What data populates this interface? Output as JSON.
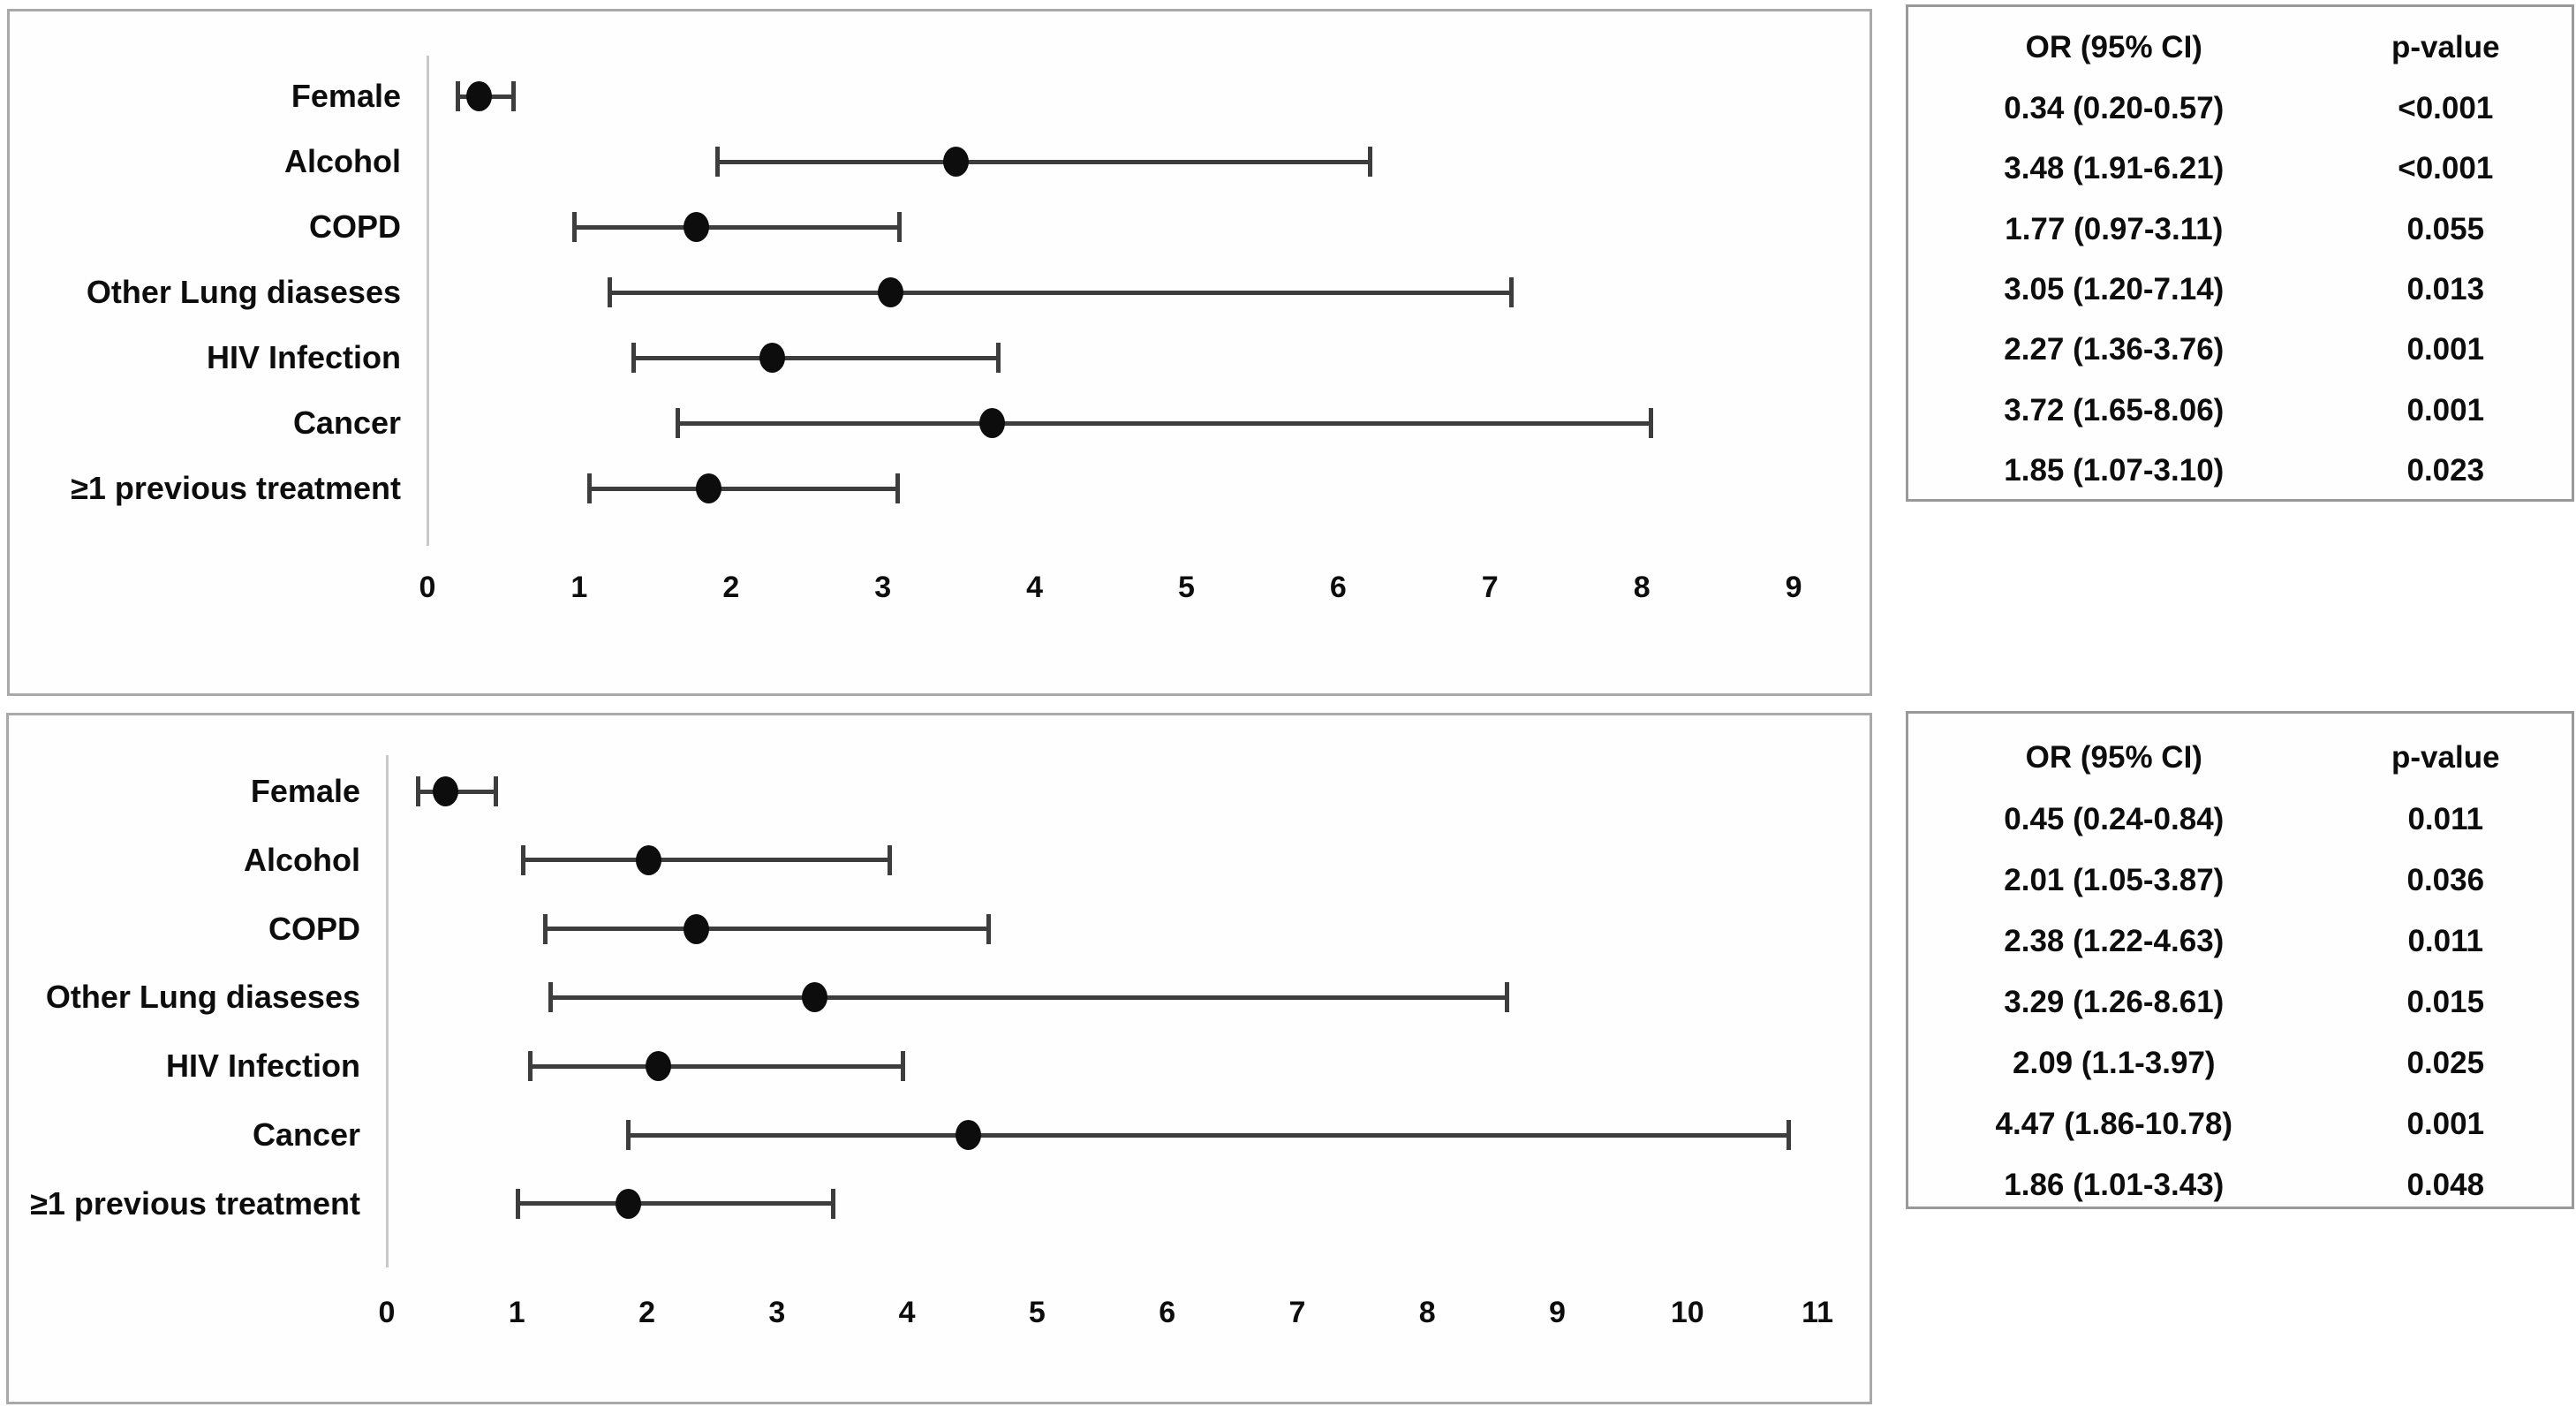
{
  "colors": {
    "bar": "#3d3d3d",
    "dot": "#0d0d0d",
    "zero_line": "#c9c9c9",
    "panel_border": "#a9a9a9",
    "table_border": "#999999",
    "text": "#0d0d0d",
    "background": "#ffffff"
  },
  "chart_data": [
    {
      "type": "scatter",
      "subtype": "forest-plot",
      "title": "",
      "xlabel": "",
      "ylabel": "",
      "grid": false,
      "legend": "none",
      "categories": [
        "Female",
        "Alcohol",
        "COPD",
        "Other Lung diaseses",
        "HIV Infection",
        "Cancer",
        "≥1 previous treatment"
      ],
      "series": [
        {
          "name": "OR",
          "values": [
            0.34,
            3.48,
            1.77,
            3.05,
            2.27,
            3.72,
            1.85
          ]
        },
        {
          "name": "CI_low",
          "values": [
            0.2,
            1.91,
            0.97,
            1.2,
            1.36,
            1.65,
            1.07
          ]
        },
        {
          "name": "CI_high",
          "values": [
            0.57,
            6.21,
            3.11,
            7.14,
            3.76,
            8.06,
            3.1
          ]
        }
      ],
      "xlim": [
        0,
        9.5
      ],
      "xticks": [
        0,
        1,
        2,
        3,
        4,
        5,
        6,
        7,
        8,
        9
      ],
      "table": {
        "headers": [
          "OR (95% CI)",
          "p-value"
        ],
        "rows": [
          [
            "0.34 (0.20-0.57)",
            "<0.001"
          ],
          [
            "3.48 (1.91-6.21)",
            "<0.001"
          ],
          [
            "1.77 (0.97-3.11)",
            "0.055"
          ],
          [
            "3.05 (1.20-7.14)",
            "0.013"
          ],
          [
            "2.27 (1.36-3.76)",
            "0.001"
          ],
          [
            "3.72 (1.65-8.06)",
            "0.001"
          ],
          [
            "1.85 (1.07-3.10)",
            "0.023"
          ]
        ]
      }
    },
    {
      "type": "scatter",
      "subtype": "forest-plot",
      "title": "",
      "xlabel": "",
      "ylabel": "",
      "grid": false,
      "legend": "none",
      "categories": [
        "Female",
        "Alcohol",
        "COPD",
        "Other Lung diaseses",
        "HIV Infection",
        "Cancer",
        "≥1 previous treatment"
      ],
      "series": [
        {
          "name": "OR",
          "values": [
            0.45,
            2.01,
            2.38,
            3.29,
            2.09,
            4.47,
            1.86
          ]
        },
        {
          "name": "CI_low",
          "values": [
            0.24,
            1.05,
            1.22,
            1.26,
            1.1,
            1.86,
            1.01
          ]
        },
        {
          "name": "CI_high",
          "values": [
            0.84,
            3.87,
            4.63,
            8.61,
            3.97,
            10.78,
            3.43
          ]
        }
      ],
      "xlim": [
        0,
        11.4
      ],
      "xticks": [
        0,
        1,
        2,
        3,
        4,
        5,
        6,
        7,
        8,
        9,
        10,
        11
      ],
      "table": {
        "headers": [
          "OR (95% CI)",
          "p-value"
        ],
        "rows": [
          [
            "0.45 (0.24-0.84)",
            "0.011"
          ],
          [
            "2.01 (1.05-3.87)",
            "0.036"
          ],
          [
            "2.38 (1.22-4.63)",
            "0.011"
          ],
          [
            "3.29 (1.26-8.61)",
            "0.015"
          ],
          [
            "2.09 (1.1-3.97)",
            "0.025"
          ],
          [
            "4.47 (1.86-10.78)",
            "0.001"
          ],
          [
            "1.86 (1.01-3.43)",
            "0.048"
          ]
        ]
      }
    }
  ]
}
